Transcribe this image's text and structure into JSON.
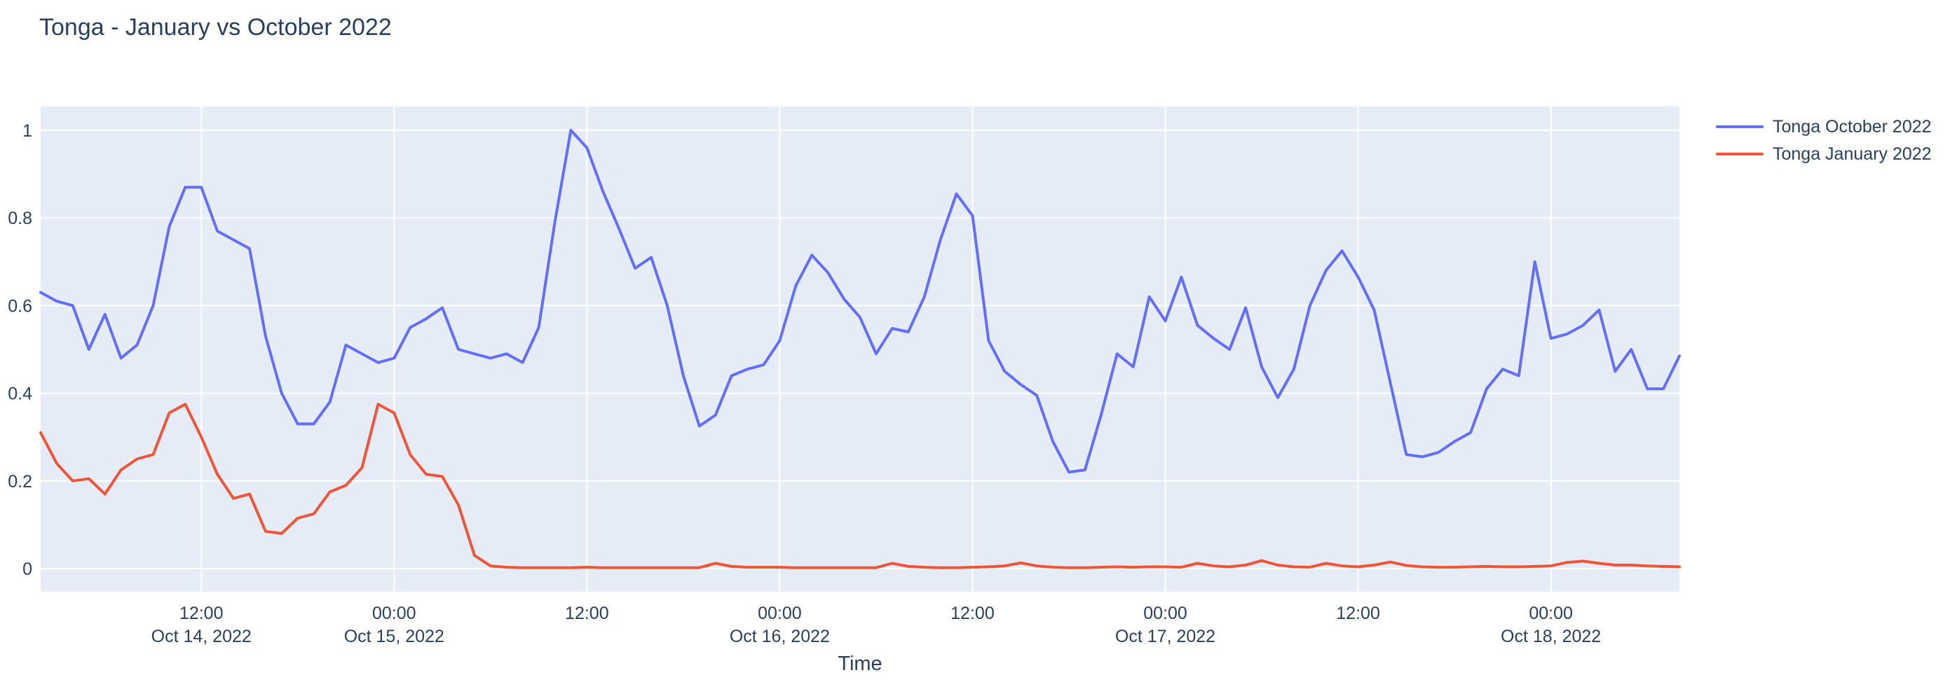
{
  "title": {
    "text": "Tonga - January vs October 2022",
    "color": "#2a3f5f"
  },
  "colors": {
    "plot_background": "#E5ECF6",
    "gridline": "#FFFFFF",
    "text": "#2a3f5f",
    "october_line": "#636EFA",
    "january_line": "#EF553B",
    "page_background": "#FFFFFF"
  },
  "legend": {
    "position": "top-right",
    "items": [
      {
        "label": "Tonga October 2022",
        "color": "#636EFA"
      },
      {
        "label": "Tonga January 2022",
        "color": "#EF553B"
      }
    ]
  },
  "chart_data": {
    "type": "line",
    "title": "Tonga - January vs October 2022",
    "xlabel": "Time",
    "ylabel": "",
    "grid": true,
    "legend_position": "top-right",
    "x_start": "2022-10-14 02:00",
    "x_step_hours": 1,
    "n_points": 103,
    "ylim": [
      -0.054,
      1.054
    ],
    "y_ticks": [
      {
        "v": 0,
        "label": "0"
      },
      {
        "v": 0.2,
        "label": "0.2"
      },
      {
        "v": 0.4,
        "label": "0.4"
      },
      {
        "v": 0.6,
        "label": "0.6"
      },
      {
        "v": 0.8,
        "label": "0.8"
      },
      {
        "v": 1,
        "label": "1"
      }
    ],
    "x_ticks": [
      {
        "i": 10,
        "time": "12:00",
        "date": "Oct 14, 2022"
      },
      {
        "i": 22,
        "time": "00:00",
        "date": "Oct 15, 2022"
      },
      {
        "i": 34,
        "time": "12:00",
        "date": ""
      },
      {
        "i": 46,
        "time": "00:00",
        "date": "Oct 16, 2022"
      },
      {
        "i": 58,
        "time": "12:00",
        "date": ""
      },
      {
        "i": 70,
        "time": "00:00",
        "date": "Oct 17, 2022"
      },
      {
        "i": 82,
        "time": "12:00",
        "date": ""
      },
      {
        "i": 94,
        "time": "00:00",
        "date": "Oct 18, 2022"
      }
    ],
    "series": [
      {
        "name": "Tonga October 2022",
        "color": "#636EFA",
        "values": [
          0.63,
          0.61,
          0.6,
          0.5,
          0.58,
          0.48,
          0.51,
          0.6,
          0.78,
          0.87,
          0.87,
          0.77,
          0.75,
          0.73,
          0.53,
          0.4,
          0.33,
          0.33,
          0.38,
          0.51,
          0.49,
          0.47,
          0.48,
          0.55,
          0.57,
          0.595,
          0.5,
          0.49,
          0.48,
          0.49,
          0.47,
          0.55,
          0.79,
          1.0,
          0.96,
          0.86,
          0.775,
          0.685,
          0.71,
          0.6,
          0.44,
          0.325,
          0.35,
          0.44,
          0.455,
          0.465,
          0.52,
          0.645,
          0.715,
          0.675,
          0.615,
          0.573,
          0.49,
          0.548,
          0.54,
          0.62,
          0.75,
          0.855,
          0.805,
          0.52,
          0.45,
          0.42,
          0.395,
          0.29,
          0.22,
          0.225,
          0.35,
          0.49,
          0.46,
          0.62,
          0.565,
          0.665,
          0.555,
          0.525,
          0.5,
          0.595,
          0.46,
          0.39,
          0.455,
          0.6,
          0.68,
          0.725,
          0.665,
          0.59,
          0.425,
          0.26,
          0.255,
          0.265,
          0.29,
          0.31,
          0.41,
          0.455,
          0.44,
          0.7,
          0.525,
          0.535,
          0.555,
          0.59,
          0.45,
          0.5,
          0.41,
          0.41,
          0.485
        ]
      },
      {
        "name": "Tonga January 2022",
        "color": "#EF553B",
        "values": [
          0.31,
          0.24,
          0.2,
          0.205,
          0.17,
          0.225,
          0.25,
          0.26,
          0.355,
          0.375,
          0.3,
          0.215,
          0.16,
          0.17,
          0.085,
          0.08,
          0.115,
          0.125,
          0.175,
          0.19,
          0.23,
          0.375,
          0.355,
          0.26,
          0.215,
          0.21,
          0.145,
          0.03,
          0.006,
          0.003,
          0.002,
          0.002,
          0.002,
          0.002,
          0.003,
          0.002,
          0.002,
          0.002,
          0.002,
          0.002,
          0.002,
          0.002,
          0.012,
          0.005,
          0.003,
          0.003,
          0.003,
          0.002,
          0.002,
          0.002,
          0.002,
          0.002,
          0.002,
          0.012,
          0.005,
          0.003,
          0.002,
          0.002,
          0.003,
          0.004,
          0.006,
          0.013,
          0.006,
          0.003,
          0.002,
          0.002,
          0.003,
          0.004,
          0.003,
          0.004,
          0.004,
          0.003,
          0.012,
          0.006,
          0.004,
          0.008,
          0.018,
          0.008,
          0.004,
          0.003,
          0.012,
          0.006,
          0.004,
          0.008,
          0.015,
          0.007,
          0.004,
          0.003,
          0.003,
          0.004,
          0.005,
          0.004,
          0.004,
          0.005,
          0.006,
          0.014,
          0.017,
          0.012,
          0.008,
          0.008,
          0.006,
          0.005,
          0.004
        ]
      }
    ]
  }
}
